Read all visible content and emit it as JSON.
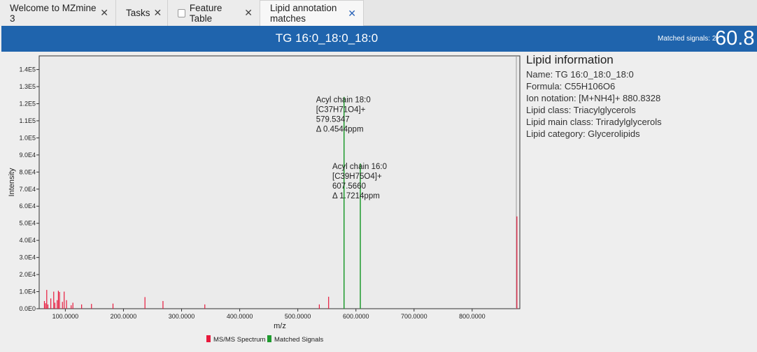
{
  "tabs": [
    {
      "label": "Welcome to MZmine 3"
    },
    {
      "label": "Tasks"
    },
    {
      "label": "Feature Table"
    },
    {
      "label": "Lipid annotation matches"
    }
  ],
  "header": {
    "title": "TG 16:0_18:0_18:0",
    "matched_label": "Matched signals: 2",
    "score": "60.8"
  },
  "info": {
    "heading": "Lipid information",
    "rows": [
      "Name: TG 16:0_18:0_18:0",
      "Formula: C55H106O6",
      "Ion notation: [M+NH4]+ 880.8328",
      "Lipid class: Triacylglycerols",
      "Lipid main class: Triradylglycerols",
      "Lipid category: Glycerolipids"
    ]
  },
  "colors": {
    "header": "#1f64ad",
    "msms": "#e8193c",
    "matched": "#1f9b2e"
  },
  "chart_data": {
    "type": "bar",
    "xlabel": "m/z",
    "ylabel": "Intensity",
    "xlim": [
      55,
      882
    ],
    "ylim": [
      0,
      148000
    ],
    "xticks": [
      "100.0000",
      "200.0000",
      "300.0000",
      "400.0000",
      "500.0000",
      "600.0000",
      "700.0000",
      "800.0000"
    ],
    "xtick_values": [
      100,
      200,
      300,
      400,
      500,
      600,
      700,
      800
    ],
    "yticks": [
      "0.0E0",
      "1.0E4",
      "2.0E4",
      "3.0E4",
      "4.0E4",
      "5.0E4",
      "6.0E4",
      "7.0E4",
      "8.0E4",
      "9.0E4",
      "1.0E5",
      "1.1E5",
      "1.2E5",
      "1.3E5",
      "1.4E5"
    ],
    "ytick_values": [
      0,
      10000,
      20000,
      30000,
      40000,
      50000,
      60000,
      70000,
      80000,
      90000,
      100000,
      110000,
      120000,
      130000,
      140000
    ],
    "legend": [
      "MS/MS Spectrum",
      "Matched Signals"
    ],
    "series": [
      {
        "name": "MS/MS Spectrum",
        "points": [
          [
            64,
            4500
          ],
          [
            66,
            3200
          ],
          [
            68,
            11000
          ],
          [
            70,
            2500
          ],
          [
            75,
            6000
          ],
          [
            80,
            10000
          ],
          [
            82,
            3500
          ],
          [
            86,
            5000
          ],
          [
            88,
            10500
          ],
          [
            90,
            9800
          ],
          [
            95,
            4000
          ],
          [
            98,
            10000
          ],
          [
            102,
            5000
          ],
          [
            110,
            2000
          ],
          [
            113,
            3500
          ],
          [
            128,
            2500
          ],
          [
            145,
            2800
          ],
          [
            182,
            3000
          ],
          [
            237,
            6800
          ],
          [
            268,
            4500
          ],
          [
            340,
            2500
          ],
          [
            537,
            2500
          ],
          [
            553,
            7000
          ],
          [
            877,
            54000
          ]
        ]
      },
      {
        "name": "Matched Signals",
        "points": [
          [
            579.5347,
            124000
          ],
          [
            607.566,
            85000
          ]
        ]
      }
    ],
    "annotations": [
      {
        "x": 579.5347,
        "lines": [
          "Acyl chain 18:0",
          "[C37H71O4]+",
          "579.5347",
          "Δ 0.4544ppm"
        ]
      },
      {
        "x": 607.566,
        "lines": [
          "Acyl chain 16:0",
          "[C39H75O4]+",
          "607.5660",
          "Δ 1.7214ppm"
        ]
      }
    ]
  }
}
